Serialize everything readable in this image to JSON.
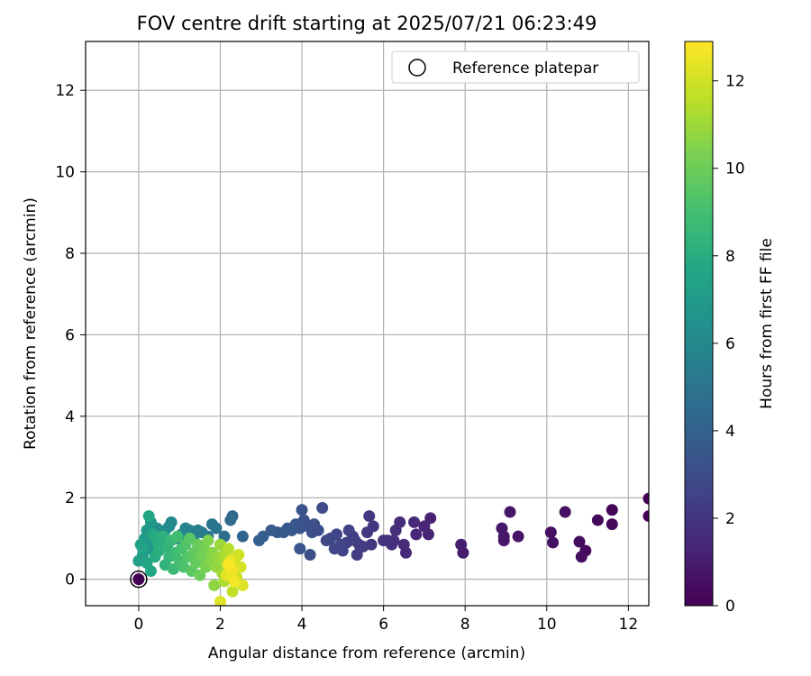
{
  "chart_data": {
    "type": "scatter",
    "title": "FOV centre drift starting at 2025/07/21 06:23:49",
    "xlabel": "Angular distance from reference (arcmin)",
    "ylabel": "Rotation from reference (arcmin)",
    "xlim": [
      -1.3,
      12.5
    ],
    "ylim": [
      -0.65,
      13.2
    ],
    "xticks": [
      0,
      2,
      4,
      6,
      8,
      10,
      12
    ],
    "yticks": [
      0,
      2,
      4,
      6,
      8,
      10,
      12
    ],
    "grid": true,
    "legend": {
      "placement": "top-right",
      "entries": [
        "Reference platepar"
      ]
    },
    "reference_point": {
      "x": 0,
      "y": 0,
      "label": "Reference platepar"
    },
    "colorbar": {
      "label": "Hours from first FF file",
      "colormap": "viridis",
      "range": [
        0,
        12.9
      ],
      "ticks": [
        0,
        2,
        4,
        6,
        8,
        10,
        12
      ]
    },
    "points": [
      [
        12.5,
        1.98,
        0.05
      ],
      [
        12.5,
        1.55,
        0.1
      ],
      [
        11.6,
        1.7,
        0.2
      ],
      [
        11.6,
        1.35,
        0.25
      ],
      [
        11.25,
        1.45,
        0.3
      ],
      [
        10.95,
        0.7,
        0.35
      ],
      [
        10.8,
        0.92,
        0.4
      ],
      [
        10.85,
        0.55,
        0.45
      ],
      [
        10.45,
        1.65,
        0.5
      ],
      [
        10.1,
        1.15,
        0.55
      ],
      [
        10.15,
        0.9,
        0.6
      ],
      [
        9.3,
        1.05,
        0.7
      ],
      [
        9.1,
        1.65,
        0.75
      ],
      [
        8.95,
        1.05,
        0.8
      ],
      [
        8.95,
        0.95,
        0.85
      ],
      [
        8.9,
        1.25,
        0.9
      ],
      [
        7.95,
        0.65,
        1.0
      ],
      [
        7.9,
        0.85,
        1.05
      ],
      [
        7.15,
        1.5,
        1.2
      ],
      [
        7.1,
        1.1,
        1.3
      ],
      [
        7.0,
        1.3,
        1.35
      ],
      [
        6.8,
        1.1,
        1.4
      ],
      [
        6.75,
        1.4,
        1.5
      ],
      [
        6.55,
        0.65,
        1.55
      ],
      [
        6.5,
        0.85,
        1.6
      ],
      [
        6.4,
        1.4,
        1.65
      ],
      [
        6.3,
        1.2,
        1.7
      ],
      [
        6.25,
        0.95,
        1.75
      ],
      [
        6.2,
        0.85,
        1.8
      ],
      [
        6.1,
        0.95,
        1.85
      ],
      [
        6.0,
        0.95,
        1.9
      ],
      [
        5.75,
        1.3,
        2.0
      ],
      [
        5.7,
        0.85,
        2.05
      ],
      [
        5.65,
        1.55,
        2.1
      ],
      [
        5.6,
        1.15,
        2.15
      ],
      [
        5.5,
        0.8,
        2.2
      ],
      [
        5.4,
        0.85,
        2.25
      ],
      [
        5.35,
        0.6,
        2.3
      ],
      [
        5.3,
        0.95,
        2.35
      ],
      [
        5.25,
        1.05,
        2.4
      ],
      [
        5.15,
        1.2,
        2.45
      ],
      [
        5.1,
        0.9,
        2.5
      ],
      [
        5.0,
        0.7,
        2.55
      ],
      [
        4.95,
        0.85,
        2.6
      ],
      [
        4.85,
        1.1,
        2.65
      ],
      [
        4.8,
        0.75,
        2.7
      ],
      [
        4.7,
        1.0,
        2.75
      ],
      [
        4.6,
        0.95,
        2.8
      ],
      [
        4.5,
        1.75,
        2.9
      ],
      [
        4.4,
        1.2,
        3.0
      ],
      [
        4.3,
        1.35,
        3.05
      ],
      [
        4.25,
        1.15,
        3.1
      ],
      [
        4.2,
        0.6,
        3.15
      ],
      [
        4.15,
        1.3,
        3.2
      ],
      [
        4.05,
        1.45,
        3.25
      ],
      [
        4.0,
        1.7,
        3.3
      ],
      [
        3.95,
        1.25,
        3.35
      ],
      [
        3.95,
        0.75,
        3.4
      ],
      [
        3.85,
        1.35,
        3.45
      ],
      [
        3.75,
        1.2,
        3.5
      ],
      [
        3.65,
        1.25,
        3.55
      ],
      [
        3.55,
        1.15,
        3.6
      ],
      [
        3.4,
        1.15,
        3.65
      ],
      [
        3.25,
        1.2,
        3.7
      ],
      [
        3.05,
        1.05,
        3.8
      ],
      [
        2.95,
        0.95,
        3.9
      ],
      [
        2.55,
        1.05,
        4.2
      ],
      [
        2.3,
        1.55,
        4.4
      ],
      [
        2.25,
        1.45,
        4.5
      ],
      [
        2.1,
        1.05,
        4.6
      ],
      [
        2.0,
        0.85,
        4.75
      ],
      [
        1.9,
        1.25,
        4.9
      ],
      [
        1.8,
        1.35,
        5.0
      ],
      [
        1.7,
        1.05,
        5.15
      ],
      [
        1.55,
        1.15,
        5.3
      ],
      [
        1.45,
        1.2,
        5.4
      ],
      [
        1.35,
        1.05,
        5.5
      ],
      [
        1.25,
        1.2,
        5.6
      ],
      [
        1.15,
        1.25,
        5.7
      ],
      [
        1.05,
        1.1,
        5.8
      ],
      [
        0.95,
        1.0,
        5.9
      ],
      [
        0.8,
        1.4,
        6.0
      ],
      [
        0.75,
        1.3,
        6.1
      ],
      [
        0.65,
        1.2,
        6.2
      ],
      [
        0.55,
        1.0,
        6.3
      ],
      [
        0.45,
        1.25,
        6.4
      ],
      [
        0.4,
        1.05,
        6.5
      ],
      [
        0.35,
        0.9,
        6.6
      ],
      [
        0.3,
        1.4,
        6.7
      ],
      [
        0.25,
        0.75,
        6.8
      ],
      [
        0.2,
        1.2,
        6.9
      ],
      [
        0.15,
        1.0,
        7.0
      ],
      [
        0.1,
        0.6,
        7.1
      ],
      [
        0.05,
        0.85,
        7.2
      ],
      [
        0.0,
        0.45,
        7.3
      ],
      [
        0.1,
        0.75,
        7.4
      ],
      [
        0.2,
        0.4,
        7.5
      ],
      [
        0.25,
        1.55,
        7.6
      ],
      [
        0.3,
        0.2,
        7.7
      ],
      [
        0.35,
        1.1,
        7.8
      ],
      [
        0.4,
        0.55,
        7.9
      ],
      [
        0.45,
        0.9,
        8.0
      ],
      [
        0.5,
        0.7,
        8.1
      ],
      [
        0.6,
        1.05,
        8.2
      ],
      [
        0.65,
        0.35,
        8.3
      ],
      [
        0.7,
        0.8,
        8.4
      ],
      [
        0.75,
        0.55,
        8.5
      ],
      [
        0.8,
        0.95,
        8.6
      ],
      [
        0.85,
        0.25,
        8.7
      ],
      [
        0.9,
        0.65,
        8.8
      ],
      [
        0.95,
        1.05,
        8.9
      ],
      [
        1.0,
        0.45,
        9.0
      ],
      [
        1.05,
        0.75,
        9.1
      ],
      [
        1.1,
        0.3,
        9.2
      ],
      [
        1.15,
        0.85,
        9.3
      ],
      [
        1.2,
        0.55,
        9.4
      ],
      [
        1.25,
        1.0,
        9.5
      ],
      [
        1.3,
        0.2,
        9.6
      ],
      [
        1.35,
        0.65,
        9.7
      ],
      [
        1.4,
        0.4,
        9.8
      ],
      [
        1.45,
        0.85,
        9.9
      ],
      [
        1.5,
        0.1,
        10.0
      ],
      [
        1.55,
        0.55,
        10.1
      ],
      [
        1.6,
        0.75,
        10.2
      ],
      [
        1.65,
        0.3,
        10.3
      ],
      [
        1.7,
        0.95,
        10.4
      ],
      [
        1.75,
        0.45,
        10.5
      ],
      [
        1.8,
        0.65,
        10.6
      ],
      [
        1.85,
        -0.15,
        10.7
      ],
      [
        1.9,
        0.3,
        10.8
      ],
      [
        1.95,
        0.55,
        10.9
      ],
      [
        2.0,
        0.85,
        11.0
      ],
      [
        2.05,
        0.15,
        11.1
      ],
      [
        2.1,
        0.6,
        11.2
      ],
      [
        2.1,
        -0.05,
        11.3
      ],
      [
        2.15,
        0.4,
        11.4
      ],
      [
        2.2,
        0.75,
        11.5
      ],
      [
        2.25,
        0.25,
        11.6
      ],
      [
        2.3,
        -0.3,
        11.7
      ],
      [
        2.35,
        0.5,
        11.8
      ],
      [
        2.4,
        0.05,
        11.9
      ],
      [
        2.45,
        0.6,
        12.0
      ],
      [
        2.5,
        0.3,
        12.1
      ],
      [
        2.55,
        -0.15,
        12.2
      ],
      [
        2.0,
        -0.55,
        12.3
      ],
      [
        2.15,
        0.1,
        12.4
      ],
      [
        2.25,
        0.45,
        12.5
      ],
      [
        2.3,
        0.2,
        12.6
      ],
      [
        2.35,
        -0.05,
        12.7
      ],
      [
        2.2,
        0.35,
        12.8
      ]
    ]
  }
}
